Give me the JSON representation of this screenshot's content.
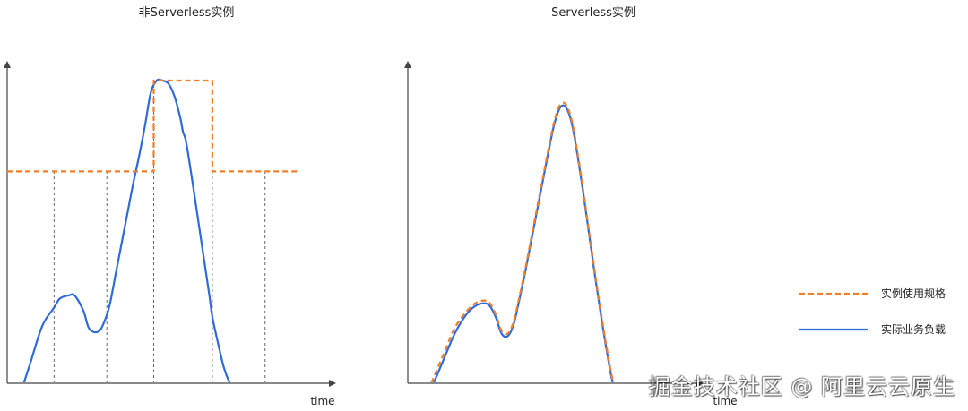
{
  "colors": {
    "capacity": "#f07f2a",
    "load": "#2f6bd6",
    "axis": "#444444",
    "guide": "#555555"
  },
  "legend": {
    "capacity_label": "实例使用规格",
    "load_label": "实际业务负载"
  },
  "watermark": "掘金技术社区 @ 阿里云云原生",
  "chart_data": [
    {
      "type": "line",
      "title": "非Serverless实例",
      "xlabel": "time",
      "ylabel": "",
      "xlim": [
        0,
        100
      ],
      "ylim": [
        0,
        100
      ],
      "series": [
        {
          "name": "实际业务负载",
          "style": "solid",
          "x": [
            5,
            8,
            12,
            16,
            18,
            21,
            23,
            26,
            28,
            31,
            33,
            35,
            37,
            39,
            41,
            43,
            45,
            47,
            49,
            51,
            53,
            55,
            57,
            59,
            60,
            61,
            63,
            65,
            67,
            69,
            70,
            72,
            74,
            76,
            78,
            80,
            82
          ],
          "y": [
            -2,
            7,
            19,
            25,
            28,
            29,
            29,
            24,
            18,
            17,
            20,
            26,
            36,
            46,
            56,
            66,
            75,
            85,
            96,
            100,
            100,
            99,
            95,
            88,
            83,
            80,
            68,
            55,
            42,
            29,
            22,
            13,
            5,
            0,
            -3,
            -5,
            -5
          ]
        },
        {
          "name": "实例使用规格",
          "style": "dashed",
          "step": true,
          "x": [
            0,
            50,
            50,
            70,
            70,
            100
          ],
          "y": [
            70,
            70,
            100,
            100,
            70,
            70
          ]
        }
      ],
      "guides_x": [
        16,
        34,
        50,
        70,
        88
      ]
    },
    {
      "type": "line",
      "title": "Serverless实例",
      "xlabel": "time",
      "ylabel": "",
      "xlim": [
        0,
        100
      ],
      "ylim": [
        0,
        100
      ],
      "series": [
        {
          "name": "实际业务负载",
          "style": "solid",
          "x": [
            8,
            12,
            16,
            20,
            23,
            26,
            28,
            30,
            32,
            34,
            36,
            38,
            40,
            42,
            44,
            46,
            48,
            50,
            52,
            54,
            56,
            58,
            60,
            62,
            64,
            66,
            68,
            70,
            72
          ],
          "y": [
            -2,
            8,
            18,
            25,
            28,
            29,
            28,
            24,
            18,
            17,
            21,
            30,
            40,
            51,
            62,
            73,
            84,
            94,
            100,
            100,
            94,
            82,
            68,
            53,
            38,
            24,
            11,
            0,
            -4
          ]
        },
        {
          "name": "实例使用规格",
          "style": "dashed",
          "x": [
            8,
            12,
            16,
            20,
            23,
            26,
            28,
            30,
            32,
            34,
            36,
            38,
            40,
            42,
            44,
            46,
            48,
            50,
            52,
            54,
            56,
            58,
            60,
            62,
            64,
            66,
            68,
            70,
            72
          ],
          "y": [
            0,
            10,
            20,
            26,
            29,
            30,
            29,
            25,
            19,
            18,
            22,
            31,
            41,
            52,
            63,
            74,
            85,
            95,
            101,
            101,
            95,
            83,
            69,
            54,
            39,
            25,
            12,
            1,
            -3
          ]
        }
      ]
    }
  ]
}
